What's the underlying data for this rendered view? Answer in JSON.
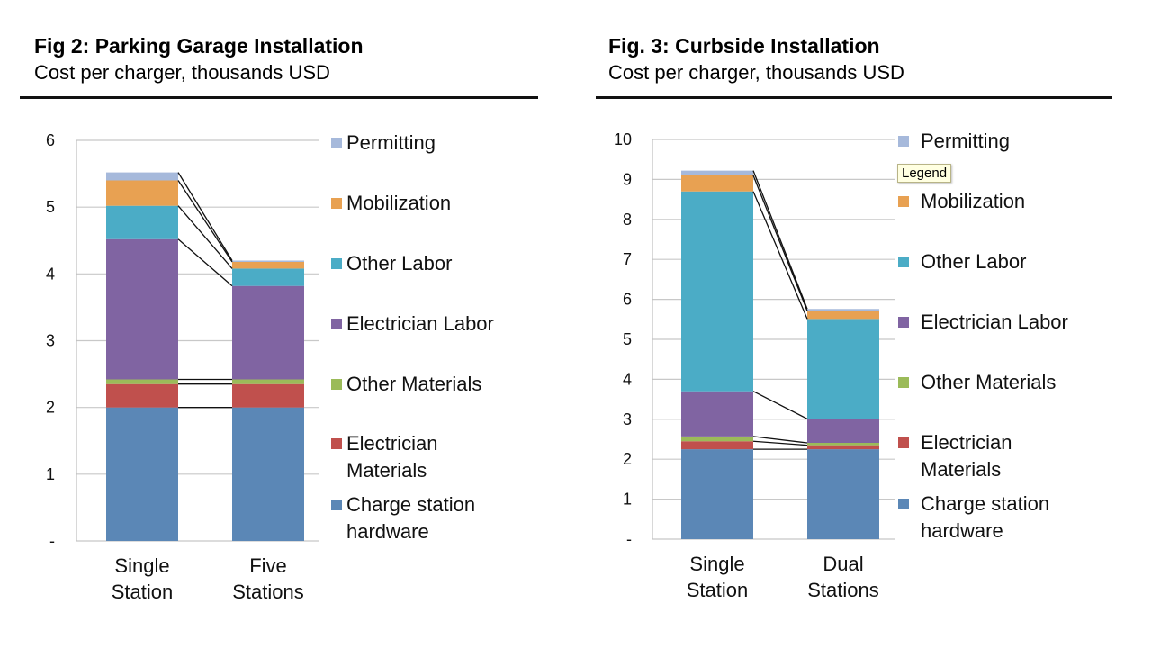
{
  "chart_data": [
    {
      "type": "bar",
      "stacked": true,
      "title": "Fig 2: Parking Garage Installation",
      "subtitle": "Cost per charger, thousands USD",
      "categories": [
        "Single|Station",
        "Five|Stations"
      ],
      "ylim": [
        0,
        6
      ],
      "yticks": [
        "-",
        "1",
        "2",
        "3",
        "4",
        "5",
        "6"
      ],
      "grid": true,
      "legend_position": "right",
      "series": [
        {
          "name": "Charge station|hardware",
          "color": "#5b87b6",
          "values": [
            2.0,
            2.0
          ]
        },
        {
          "name": "Electrician|Materials",
          "color": "#c0504d",
          "values": [
            0.35,
            0.35
          ]
        },
        {
          "name": "Other Materials",
          "color": "#9bbb59",
          "values": [
            0.07,
            0.07
          ]
        },
        {
          "name": "Electrician Labor",
          "color": "#8064a2",
          "values": [
            2.1,
            1.4
          ]
        },
        {
          "name": "Other Labor",
          "color": "#4bacc6",
          "values": [
            0.5,
            0.26
          ]
        },
        {
          "name": "Mobilization",
          "color": "#e8a152",
          "values": [
            0.38,
            0.1
          ]
        },
        {
          "name": "Permitting",
          "color": "#a6b9db",
          "values": [
            0.12,
            0.02
          ]
        }
      ]
    },
    {
      "type": "bar",
      "stacked": true,
      "title": "Fig. 3: Curbside Installation",
      "subtitle": "Cost per charger, thousands USD",
      "categories": [
        "Single|Station",
        "Dual|Stations"
      ],
      "ylim": [
        0,
        10
      ],
      "yticks": [
        "-",
        "1",
        "2",
        "3",
        "4",
        "5",
        "6",
        "7",
        "8",
        "9",
        "10"
      ],
      "grid": true,
      "legend_position": "right",
      "tooltip": "Legend",
      "series": [
        {
          "name": "Charge station|hardware",
          "color": "#5b87b6",
          "values": [
            2.25,
            2.25
          ]
        },
        {
          "name": "Electrician|Materials",
          "color": "#c0504d",
          "values": [
            0.2,
            0.1
          ]
        },
        {
          "name": "Other Materials",
          "color": "#9bbb59",
          "values": [
            0.12,
            0.06
          ]
        },
        {
          "name": "Electrician Labor",
          "color": "#8064a2",
          "values": [
            1.13,
            0.6
          ]
        },
        {
          "name": "Other Labor",
          "color": "#4bacc6",
          "values": [
            5.0,
            2.5
          ]
        },
        {
          "name": "Mobilization",
          "color": "#e8a152",
          "values": [
            0.4,
            0.2
          ]
        },
        {
          "name": "Permitting",
          "color": "#a6b9db",
          "values": [
            0.12,
            0.05
          ]
        }
      ]
    }
  ]
}
